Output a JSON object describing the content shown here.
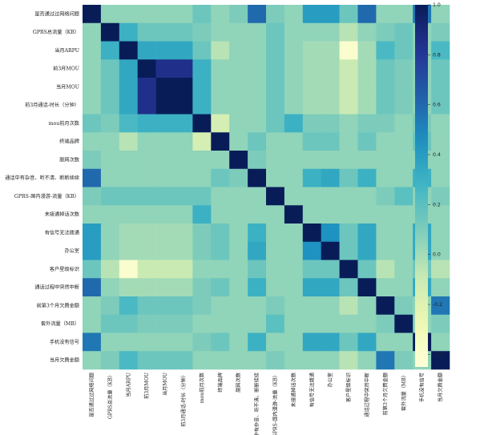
{
  "chart_data": {
    "type": "heatmap",
    "labels": [
      "是否通过过网络问题",
      "GPRS总流量（KB）",
      "当月ARPU",
      "前3月MOU",
      "当月MOU",
      "前3月通话-时长（分钟）",
      "mou前月次数",
      "终端品牌",
      "脱网次数",
      "通话中有杂音、听不清、断断续续",
      "GPRS-国内漫游-流量（KB）",
      "未接通掉话次数",
      "有信号无法拨通",
      "办公室",
      "客户星级标识",
      "通话过程中突然中断",
      "前第3个月欠费金额",
      "套外流量（MB）",
      "手机没有信号",
      "当月欠费金额"
    ],
    "matrix": [
      [
        1,
        0.05,
        0.05,
        0.05,
        0.05,
        0.05,
        0.15,
        0.05,
        0.1,
        0.6,
        0.1,
        0.05,
        0.4,
        0.4,
        0.15,
        0.6,
        0.05,
        0.05,
        0.55,
        0.05
      ],
      [
        0.05,
        1,
        0.3,
        0.15,
        0.15,
        0.15,
        0.1,
        0.05,
        0.05,
        0.05,
        0.15,
        0.05,
        0.05,
        0.05,
        -0.05,
        0.05,
        0.1,
        0.15,
        0.05,
        0.1
      ],
      [
        0.05,
        0.3,
        1,
        0.35,
        0.35,
        0.35,
        0.15,
        -0.05,
        0.05,
        0.05,
        0.15,
        0.05,
        0,
        0,
        -0.4,
        0,
        0.25,
        0.15,
        0.05,
        0.25
      ],
      [
        0.05,
        0.15,
        0.35,
        1,
        0.85,
        0.85,
        0.3,
        0.05,
        0.05,
        0.05,
        0.15,
        0.05,
        0,
        0,
        -0.1,
        0,
        0.15,
        0.1,
        0.05,
        0.15
      ],
      [
        0.05,
        0.15,
        0.35,
        0.85,
        1,
        1,
        0.3,
        0.05,
        0.05,
        0.05,
        0.15,
        0.05,
        0,
        0,
        -0.1,
        0,
        0.15,
        0.1,
        0.05,
        0.15
      ],
      [
        0.05,
        0.15,
        0.35,
        0.85,
        1,
        1,
        0.3,
        0.05,
        0.05,
        0.05,
        0.15,
        0.05,
        0,
        0,
        -0.1,
        0,
        0.15,
        0.1,
        0.05,
        0.15
      ],
      [
        0.15,
        0.1,
        0.25,
        0.3,
        0.3,
        0.3,
        1,
        -0.15,
        0.05,
        0.05,
        0.15,
        0.3,
        0.1,
        0.1,
        0.05,
        0.1,
        0.1,
        0.05,
        0.1,
        0.05
      ],
      [
        0.05,
        0.05,
        -0.05,
        0.05,
        0.05,
        0.05,
        -0.15,
        1,
        0.05,
        0.15,
        0.05,
        0.05,
        0.15,
        0.15,
        0.05,
        0.15,
        0.05,
        0.05,
        0.15,
        0.05
      ],
      [
        0.1,
        0.05,
        0.05,
        0.05,
        0.05,
        0.05,
        0.05,
        0.05,
        1,
        0.1,
        0.05,
        0.05,
        0.05,
        0.05,
        0.05,
        0.05,
        0.05,
        0.05,
        0.05,
        0.05
      ],
      [
        0.6,
        0.05,
        0.05,
        0.05,
        0.05,
        0.05,
        0.05,
        0.15,
        0.1,
        1,
        0.05,
        0.05,
        0.3,
        0.35,
        0.15,
        0.3,
        0.05,
        0.05,
        0.3,
        0.05
      ],
      [
        0.1,
        0.15,
        0.15,
        0.15,
        0.15,
        0.15,
        0.15,
        0.05,
        0.05,
        0.05,
        1,
        0.05,
        0.05,
        0.05,
        0.05,
        0.05,
        0.1,
        0.2,
        0.05,
        0.1
      ],
      [
        0.05,
        0.05,
        0.05,
        0.05,
        0.05,
        0.05,
        0.3,
        0.05,
        0.05,
        0.05,
        0.05,
        1,
        0.05,
        0.05,
        0.05,
        0.05,
        0.05,
        0.05,
        0.05,
        0.05
      ],
      [
        0.4,
        0.05,
        0,
        0,
        0,
        0,
        0.1,
        0.15,
        0.05,
        0.3,
        0.05,
        0.05,
        1,
        0.45,
        0.15,
        0.35,
        0.05,
        0.05,
        0.35,
        0.05
      ],
      [
        0.4,
        0.05,
        0,
        0,
        0,
        0,
        0.1,
        0.15,
        0.05,
        0.35,
        0.05,
        0.05,
        0.45,
        1,
        0.15,
        0.35,
        0.05,
        0.05,
        0.35,
        0.05
      ],
      [
        0.15,
        -0.05,
        -0.4,
        -0.1,
        -0.1,
        -0.1,
        0.05,
        0.05,
        0.05,
        0.15,
        0.05,
        0.05,
        0.15,
        0.15,
        1,
        0.15,
        -0.05,
        0.05,
        0.15,
        -0.05
      ],
      [
        0.6,
        0.05,
        0,
        0,
        0,
        0,
        0.1,
        0.15,
        0.05,
        0.3,
        0.05,
        0.05,
        0.35,
        0.35,
        0.15,
        1,
        0.05,
        0.05,
        0.35,
        0.05
      ],
      [
        0.05,
        0.1,
        0.25,
        0.15,
        0.15,
        0.15,
        0.1,
        0.05,
        0.05,
        0.05,
        0.1,
        0.05,
        0.05,
        0.05,
        -0.05,
        0.05,
        1,
        0.1,
        0.05,
        0.55
      ],
      [
        0.05,
        0.15,
        0.15,
        0.1,
        0.1,
        0.1,
        0.05,
        0.05,
        0.05,
        0.05,
        0.2,
        0.05,
        0.05,
        0.05,
        0.05,
        0.05,
        0.1,
        1,
        0.05,
        0.1
      ],
      [
        0.55,
        0.05,
        0.05,
        0.05,
        0.05,
        0.05,
        0.1,
        0.15,
        0.05,
        0.3,
        0.05,
        0.05,
        0.35,
        0.35,
        0.15,
        0.35,
        0.05,
        0.05,
        1,
        0.05
      ],
      [
        0.05,
        0.1,
        0.25,
        0.15,
        0.15,
        0.15,
        0.05,
        0.05,
        0.05,
        0.05,
        0.1,
        0.05,
        0.05,
        0.05,
        -0.05,
        0.05,
        0.55,
        0.1,
        0.05,
        1
      ]
    ],
    "colorbar": {
      "ticks": [
        "1.0",
        "0.8",
        "0.6",
        "0.4",
        "0.2",
        "0.0",
        "-0.2",
        "-0.4"
      ],
      "range": [
        -0.45,
        1.0
      ],
      "colormap": "YlGnBu"
    },
    "title": "",
    "xlabel": "",
    "ylabel": "",
    "grid": false
  }
}
